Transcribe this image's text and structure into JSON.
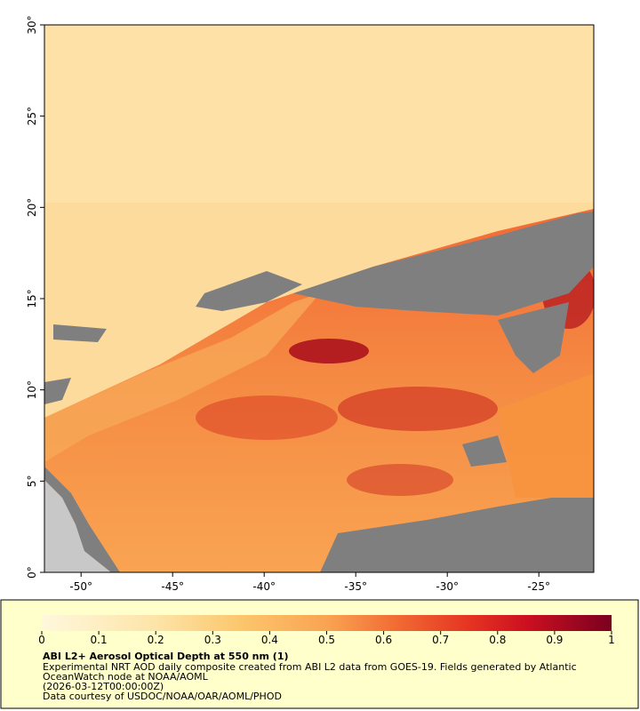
{
  "map": {
    "xlim": [
      -52,
      -22
    ],
    "xticks": [
      {
        "value": -50,
        "label": "-50°"
      },
      {
        "value": -45,
        "label": "-45°"
      },
      {
        "value": -40,
        "label": "-40°"
      },
      {
        "value": -35,
        "label": "-35°"
      },
      {
        "value": -30,
        "label": "-30°"
      },
      {
        "value": -25,
        "label": "-25°"
      }
    ],
    "ylim": [
      0,
      30
    ],
    "yticks": [
      {
        "value": 0,
        "label": "0°"
      },
      {
        "value": 5,
        "label": "5°"
      },
      {
        "value": 10,
        "label": "10°"
      },
      {
        "value": 15,
        "label": "15°"
      },
      {
        "value": 20,
        "label": "20°"
      },
      {
        "value": 25,
        "label": "25°"
      },
      {
        "value": 30,
        "label": "30°"
      }
    ]
  },
  "colorbar": {
    "range": [
      0,
      1
    ],
    "ticks": [
      0,
      0.1,
      0.2,
      0.3,
      0.4,
      0.5,
      0.6,
      0.7,
      0.8,
      0.9,
      1
    ]
  },
  "legend": {
    "title": "ABI L2+ Aerosol Optical Depth at 550 nm (1)",
    "lines": [
      "Experimental NRT AOD daily composite created from ABI L2 data from GOES-19. Fields generated by Atlantic",
      "OceanWatch node at NOAA/AOML",
      "(2026-03-12T00:00:00Z)",
      "Data courtesy of USDOC/NOAA/OAR/AOML/PHOD"
    ]
  }
}
